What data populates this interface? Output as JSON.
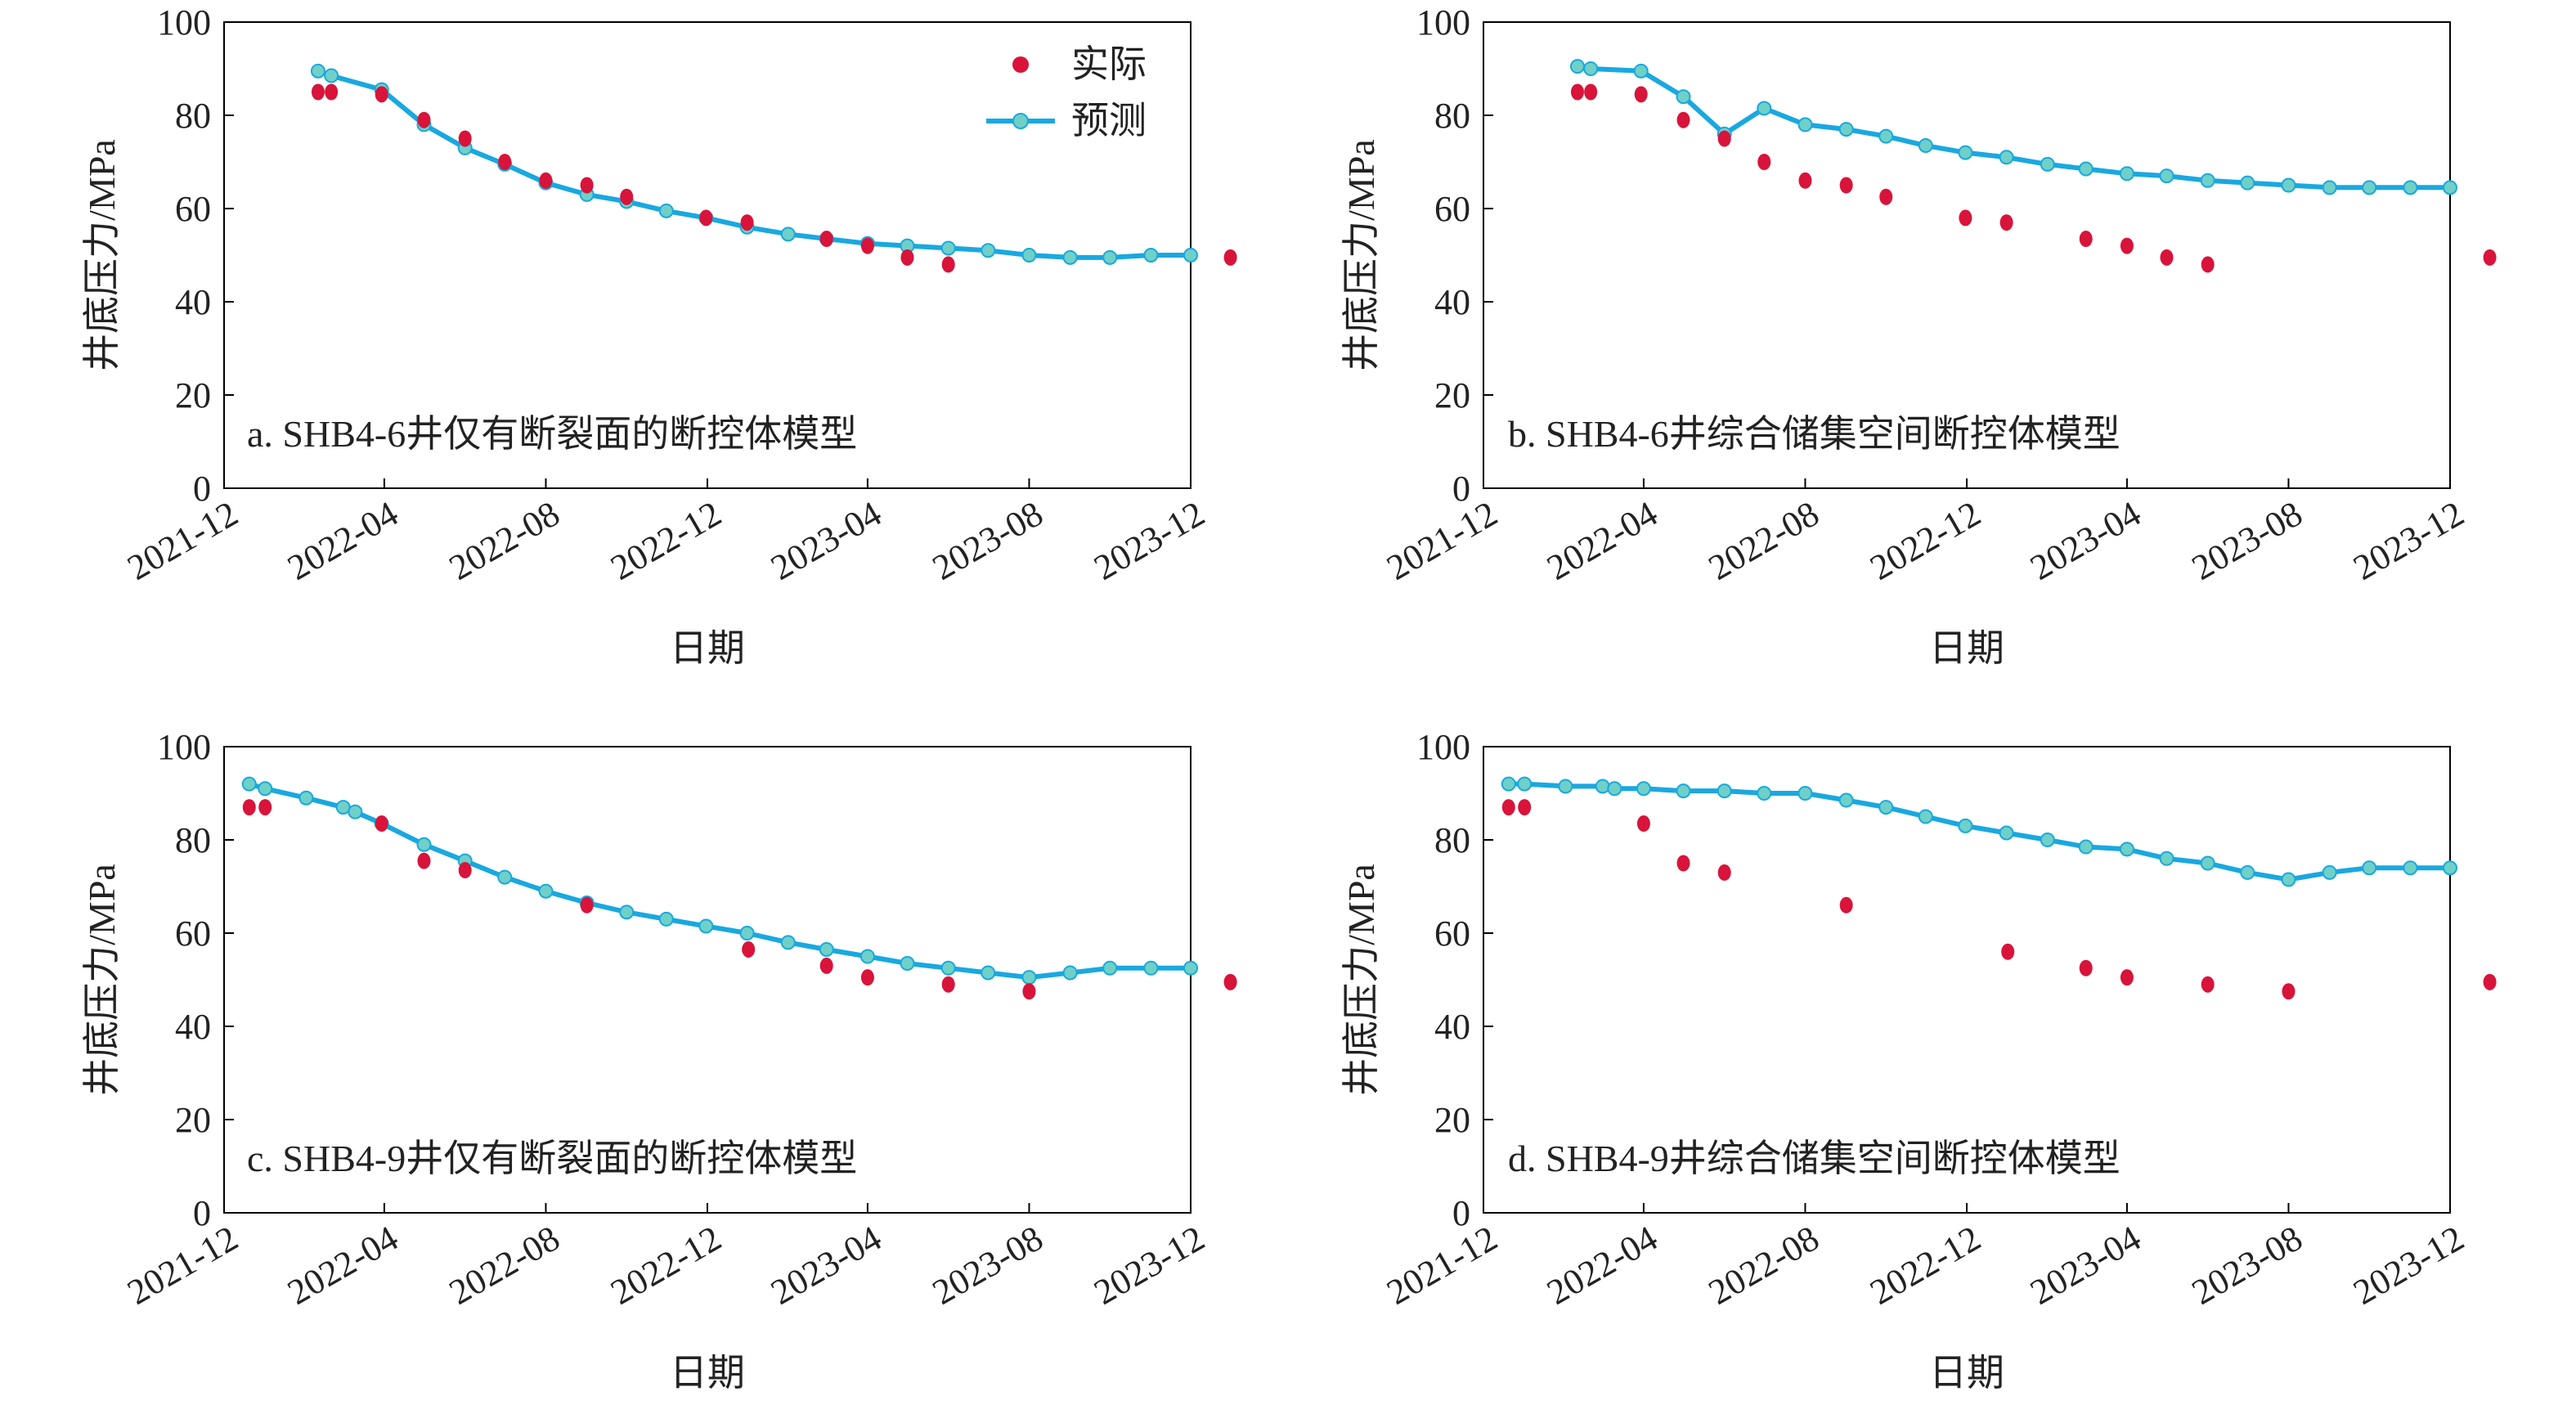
{
  "chart_data": [
    {
      "type": "line",
      "annotation": "a. SHB4-6井仅有断裂面的断控体模型",
      "xlabel": "日期",
      "ylabel": "井底压力/MPa",
      "xlim": [
        "2021-12",
        "2023-12"
      ],
      "ylim": [
        0,
        100
      ],
      "yticks": [
        0,
        20,
        40,
        60,
        80,
        100
      ],
      "xticks": [
        "2021-12",
        "2022-04",
        "2022-08",
        "2022-12",
        "2023-04",
        "2023-08",
        "2023-12"
      ],
      "legend": {
        "position": "top-right",
        "entries": [
          "实际",
          "预测"
        ]
      },
      "series": [
        {
          "name": "实际",
          "kind": "scatter",
          "x": [
            "2022-02-10",
            "2022-02-20",
            "2022-03-30",
            "2022-05-01",
            "2022-06-01",
            "2022-07-01",
            "2022-08-01",
            "2022-09-01",
            "2022-10-01",
            "2022-11-30",
            "2022-12-31",
            "2023-03-01",
            "2023-04-01",
            "2023-05-01",
            "2023-06-01",
            "2023-12-31"
          ],
          "y": [
            85,
            85,
            84.5,
            79,
            75,
            70,
            66,
            65,
            62.5,
            58,
            57,
            53.5,
            52,
            49.5,
            48,
            49.5
          ]
        },
        {
          "name": "预测",
          "kind": "line",
          "x": [
            "2022-02-10",
            "2022-02-20",
            "2022-03-30",
            "2022-05-01",
            "2022-06-01",
            "2022-07-01",
            "2022-08-01",
            "2022-09-01",
            "2022-10-01",
            "2022-10-31",
            "2022-11-30",
            "2022-12-31",
            "2023-01-31",
            "2023-03-01",
            "2023-04-01",
            "2023-05-01",
            "2023-06-01",
            "2023-07-01",
            "2023-08-01",
            "2023-09-01",
            "2023-10-01",
            "2023-11-01",
            "2023-12-01"
          ],
          "y": [
            89.5,
            88.5,
            85.5,
            78,
            73,
            69.5,
            65.5,
            63,
            61.5,
            59.5,
            58,
            56,
            54.5,
            53.5,
            52.5,
            52,
            51.5,
            51,
            50,
            49.5,
            49.5,
            50,
            50
          ]
        }
      ]
    },
    {
      "type": "line",
      "annotation": "b. SHB4-6井综合储集空间断控体模型",
      "xlabel": "日期",
      "ylabel": "井底压力/MPa",
      "xlim": [
        "2021-12",
        "2023-12"
      ],
      "ylim": [
        0,
        100
      ],
      "yticks": [
        0,
        20,
        40,
        60,
        80,
        100
      ],
      "xticks": [
        "2021-12",
        "2022-04",
        "2022-08",
        "2022-12",
        "2023-04",
        "2023-08",
        "2023-12"
      ],
      "series": [
        {
          "name": "实际",
          "kind": "scatter",
          "x": [
            "2022-02-10",
            "2022-02-20",
            "2022-03-30",
            "2022-05-01",
            "2022-06-01",
            "2022-07-01",
            "2022-08-01",
            "2022-09-01",
            "2022-10-01",
            "2022-11-30",
            "2022-12-31",
            "2023-03-01",
            "2023-04-01",
            "2023-05-01",
            "2023-06-01",
            "2023-12-31"
          ],
          "y": [
            85,
            85,
            84.5,
            79,
            75,
            70,
            66,
            65,
            62.5,
            58,
            57,
            53.5,
            52,
            49.5,
            48,
            49.5
          ]
        },
        {
          "name": "预测",
          "kind": "line",
          "x": [
            "2022-02-10",
            "2022-02-20",
            "2022-03-30",
            "2022-05-01",
            "2022-06-01",
            "2022-07-01",
            "2022-08-01",
            "2022-09-01",
            "2022-10-01",
            "2022-10-31",
            "2022-11-30",
            "2022-12-31",
            "2023-01-31",
            "2023-03-01",
            "2023-04-01",
            "2023-05-01",
            "2023-06-01",
            "2023-07-01",
            "2023-08-01",
            "2023-09-01",
            "2023-10-01",
            "2023-11-01",
            "2023-12-01"
          ],
          "y": [
            90.5,
            90,
            89.5,
            84,
            76,
            81.5,
            78,
            77,
            75.5,
            73.5,
            72,
            71,
            69.5,
            68.5,
            67.5,
            67,
            66,
            65.5,
            65,
            64.5,
            64.5,
            64.5,
            64.5
          ]
        }
      ]
    },
    {
      "type": "line",
      "annotation": "c. SHB4-9井仅有断裂面的断控体模型",
      "xlabel": "日期",
      "ylabel": "井底压力/MPa",
      "xlim": [
        "2021-12",
        "2023-12"
      ],
      "ylim": [
        0,
        100
      ],
      "yticks": [
        0,
        20,
        40,
        60,
        80,
        100
      ],
      "xticks": [
        "2021-12",
        "2022-04",
        "2022-08",
        "2022-12",
        "2023-04",
        "2023-08",
        "2023-12"
      ],
      "series": [
        {
          "name": "实际",
          "kind": "scatter",
          "x": [
            "2021-12-20",
            "2022-01-01",
            "2022-03-30",
            "2022-05-01",
            "2022-06-01",
            "2022-09-01",
            "2023-01-01",
            "2023-03-01",
            "2023-04-01",
            "2023-06-01",
            "2023-08-01",
            "2023-12-31"
          ],
          "y": [
            87,
            87,
            83.5,
            75.5,
            73.5,
            66,
            56.5,
            53,
            50.5,
            49,
            47.5,
            49.5
          ]
        },
        {
          "name": "预测",
          "kind": "line",
          "x": [
            "2021-12-20",
            "2022-01-01",
            "2022-02-01",
            "2022-03-01",
            "2022-03-10",
            "2022-03-30",
            "2022-05-01",
            "2022-06-01",
            "2022-07-01",
            "2022-08-01",
            "2022-09-01",
            "2022-10-01",
            "2022-10-31",
            "2022-11-30",
            "2022-12-31",
            "2023-01-31",
            "2023-03-01",
            "2023-04-01",
            "2023-05-01",
            "2023-06-01",
            "2023-07-01",
            "2023-08-01",
            "2023-09-01",
            "2023-10-01",
            "2023-11-01",
            "2023-12-01"
          ],
          "y": [
            92,
            91,
            89,
            87,
            86,
            83.5,
            79,
            75.5,
            72,
            69,
            66.5,
            64.5,
            63,
            61.5,
            60,
            58,
            56.5,
            55,
            53.5,
            52.5,
            51.5,
            50.5,
            51.5,
            52.5,
            52.5,
            52.5
          ]
        }
      ]
    },
    {
      "type": "line",
      "annotation": "d. SHB4-9井综合储集空间断控体模型",
      "xlabel": "日期",
      "ylabel": "井底压力/MPa",
      "xlim": [
        "2021-12",
        "2023-12"
      ],
      "ylim": [
        0,
        100
      ],
      "yticks": [
        0,
        20,
        40,
        60,
        80,
        100
      ],
      "xticks": [
        "2021-12",
        "2022-04",
        "2022-08",
        "2022-12",
        "2023-04",
        "2023-08",
        "2023-12"
      ],
      "series": [
        {
          "name": "实际",
          "kind": "scatter",
          "x": [
            "2021-12-20",
            "2022-01-01",
            "2022-04-01",
            "2022-05-01",
            "2022-06-01",
            "2022-09-01",
            "2023-01-01",
            "2023-03-01",
            "2023-04-01",
            "2023-06-01",
            "2023-08-01",
            "2023-12-31"
          ],
          "y": [
            87,
            87,
            83.5,
            75,
            73,
            66,
            56,
            52.5,
            50.5,
            49,
            47.5,
            49.5
          ]
        },
        {
          "name": "预测",
          "kind": "line",
          "x": [
            "2021-12-20",
            "2022-01-01",
            "2022-02-01",
            "2022-03-01",
            "2022-03-10",
            "2022-04-01",
            "2022-05-01",
            "2022-06-01",
            "2022-07-01",
            "2022-08-01",
            "2022-09-01",
            "2022-10-01",
            "2022-10-31",
            "2022-11-30",
            "2022-12-31",
            "2023-01-31",
            "2023-03-01",
            "2023-04-01",
            "2023-05-01",
            "2023-06-01",
            "2023-07-01",
            "2023-08-01",
            "2023-09-01",
            "2023-10-01",
            "2023-11-01",
            "2023-12-01"
          ],
          "y": [
            92,
            92,
            91.5,
            91.5,
            91,
            91,
            90.5,
            90.5,
            90,
            90,
            88.5,
            87,
            85,
            83,
            81.5,
            80,
            78.5,
            78,
            76,
            75,
            73,
            71.5,
            73,
            74,
            74,
            74
          ]
        }
      ]
    }
  ],
  "colors": {
    "actual": "#D8143A",
    "predicted": "#19A8E0",
    "predicted_marker": "#6FD0C8"
  }
}
